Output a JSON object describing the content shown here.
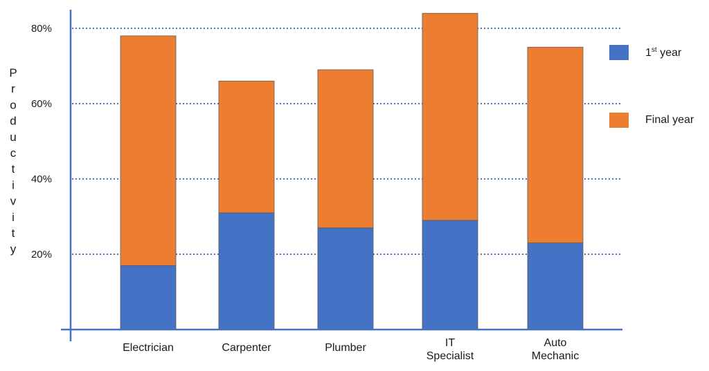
{
  "chart_data": {
    "type": "bar",
    "stacked": true,
    "categories": [
      [
        "Electrician"
      ],
      [
        "Carpenter"
      ],
      [
        "Plumber"
      ],
      [
        "IT",
        "Specialist"
      ],
      [
        "Auto",
        "Mechanic"
      ]
    ],
    "series": [
      {
        "name": "1st year",
        "color": "#4472C4",
        "values": [
          17,
          31,
          27,
          29,
          23
        ]
      },
      {
        "name": "Final year",
        "color": "#ED7D31",
        "values": [
          61,
          35,
          42,
          55,
          52
        ]
      }
    ],
    "totals": [
      78,
      66,
      69,
      84,
      75
    ],
    "ylabel": "Productivity",
    "yticks": [
      "20%",
      "40%",
      "60%",
      "80%"
    ],
    "ytick_values": [
      20,
      40,
      60,
      80
    ],
    "ylim": [
      0,
      84
    ],
    "grid": "dotted horizontal at ticks",
    "legend_position": "right",
    "legend": {
      "first_main": "1",
      "first_sup": "st",
      "first_rest": " year",
      "second": "Final year"
    }
  }
}
